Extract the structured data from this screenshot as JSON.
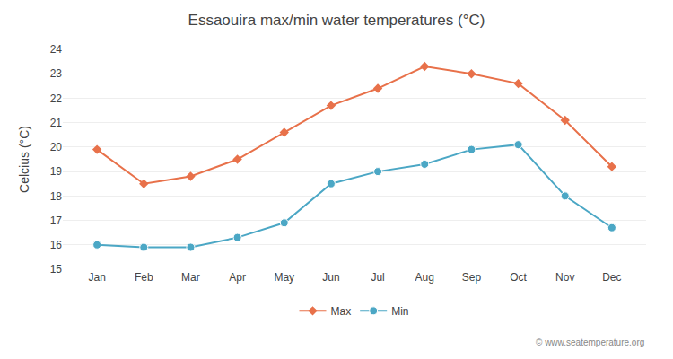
{
  "chart_data": {
    "type": "line",
    "title": "Essaouira max/min water temperatures (°C)",
    "y_label": "Celcius (°C)",
    "categories": [
      "Jan",
      "Feb",
      "Mar",
      "Apr",
      "May",
      "Jun",
      "Jul",
      "Aug",
      "Sep",
      "Oct",
      "Nov",
      "Dec"
    ],
    "series": [
      {
        "name": "Max",
        "color": "#E8714A",
        "marker": "diamond",
        "values": [
          19.9,
          18.5,
          18.8,
          19.5,
          20.6,
          21.7,
          22.4,
          23.3,
          23.0,
          22.6,
          21.1,
          19.2
        ]
      },
      {
        "name": "Min",
        "color": "#4BA7C5",
        "marker": "circle",
        "values": [
          16.0,
          15.9,
          15.9,
          16.3,
          16.9,
          18.5,
          19.0,
          19.3,
          19.9,
          20.1,
          18.0,
          16.7
        ]
      }
    ],
    "ylim": [
      15,
      24
    ],
    "yticks": [
      15,
      16,
      17,
      18,
      19,
      20,
      21,
      22,
      23,
      24
    ],
    "grid": "y",
    "legend": "bottom",
    "annotations": [
      "© www.seatemperature.org"
    ]
  }
}
